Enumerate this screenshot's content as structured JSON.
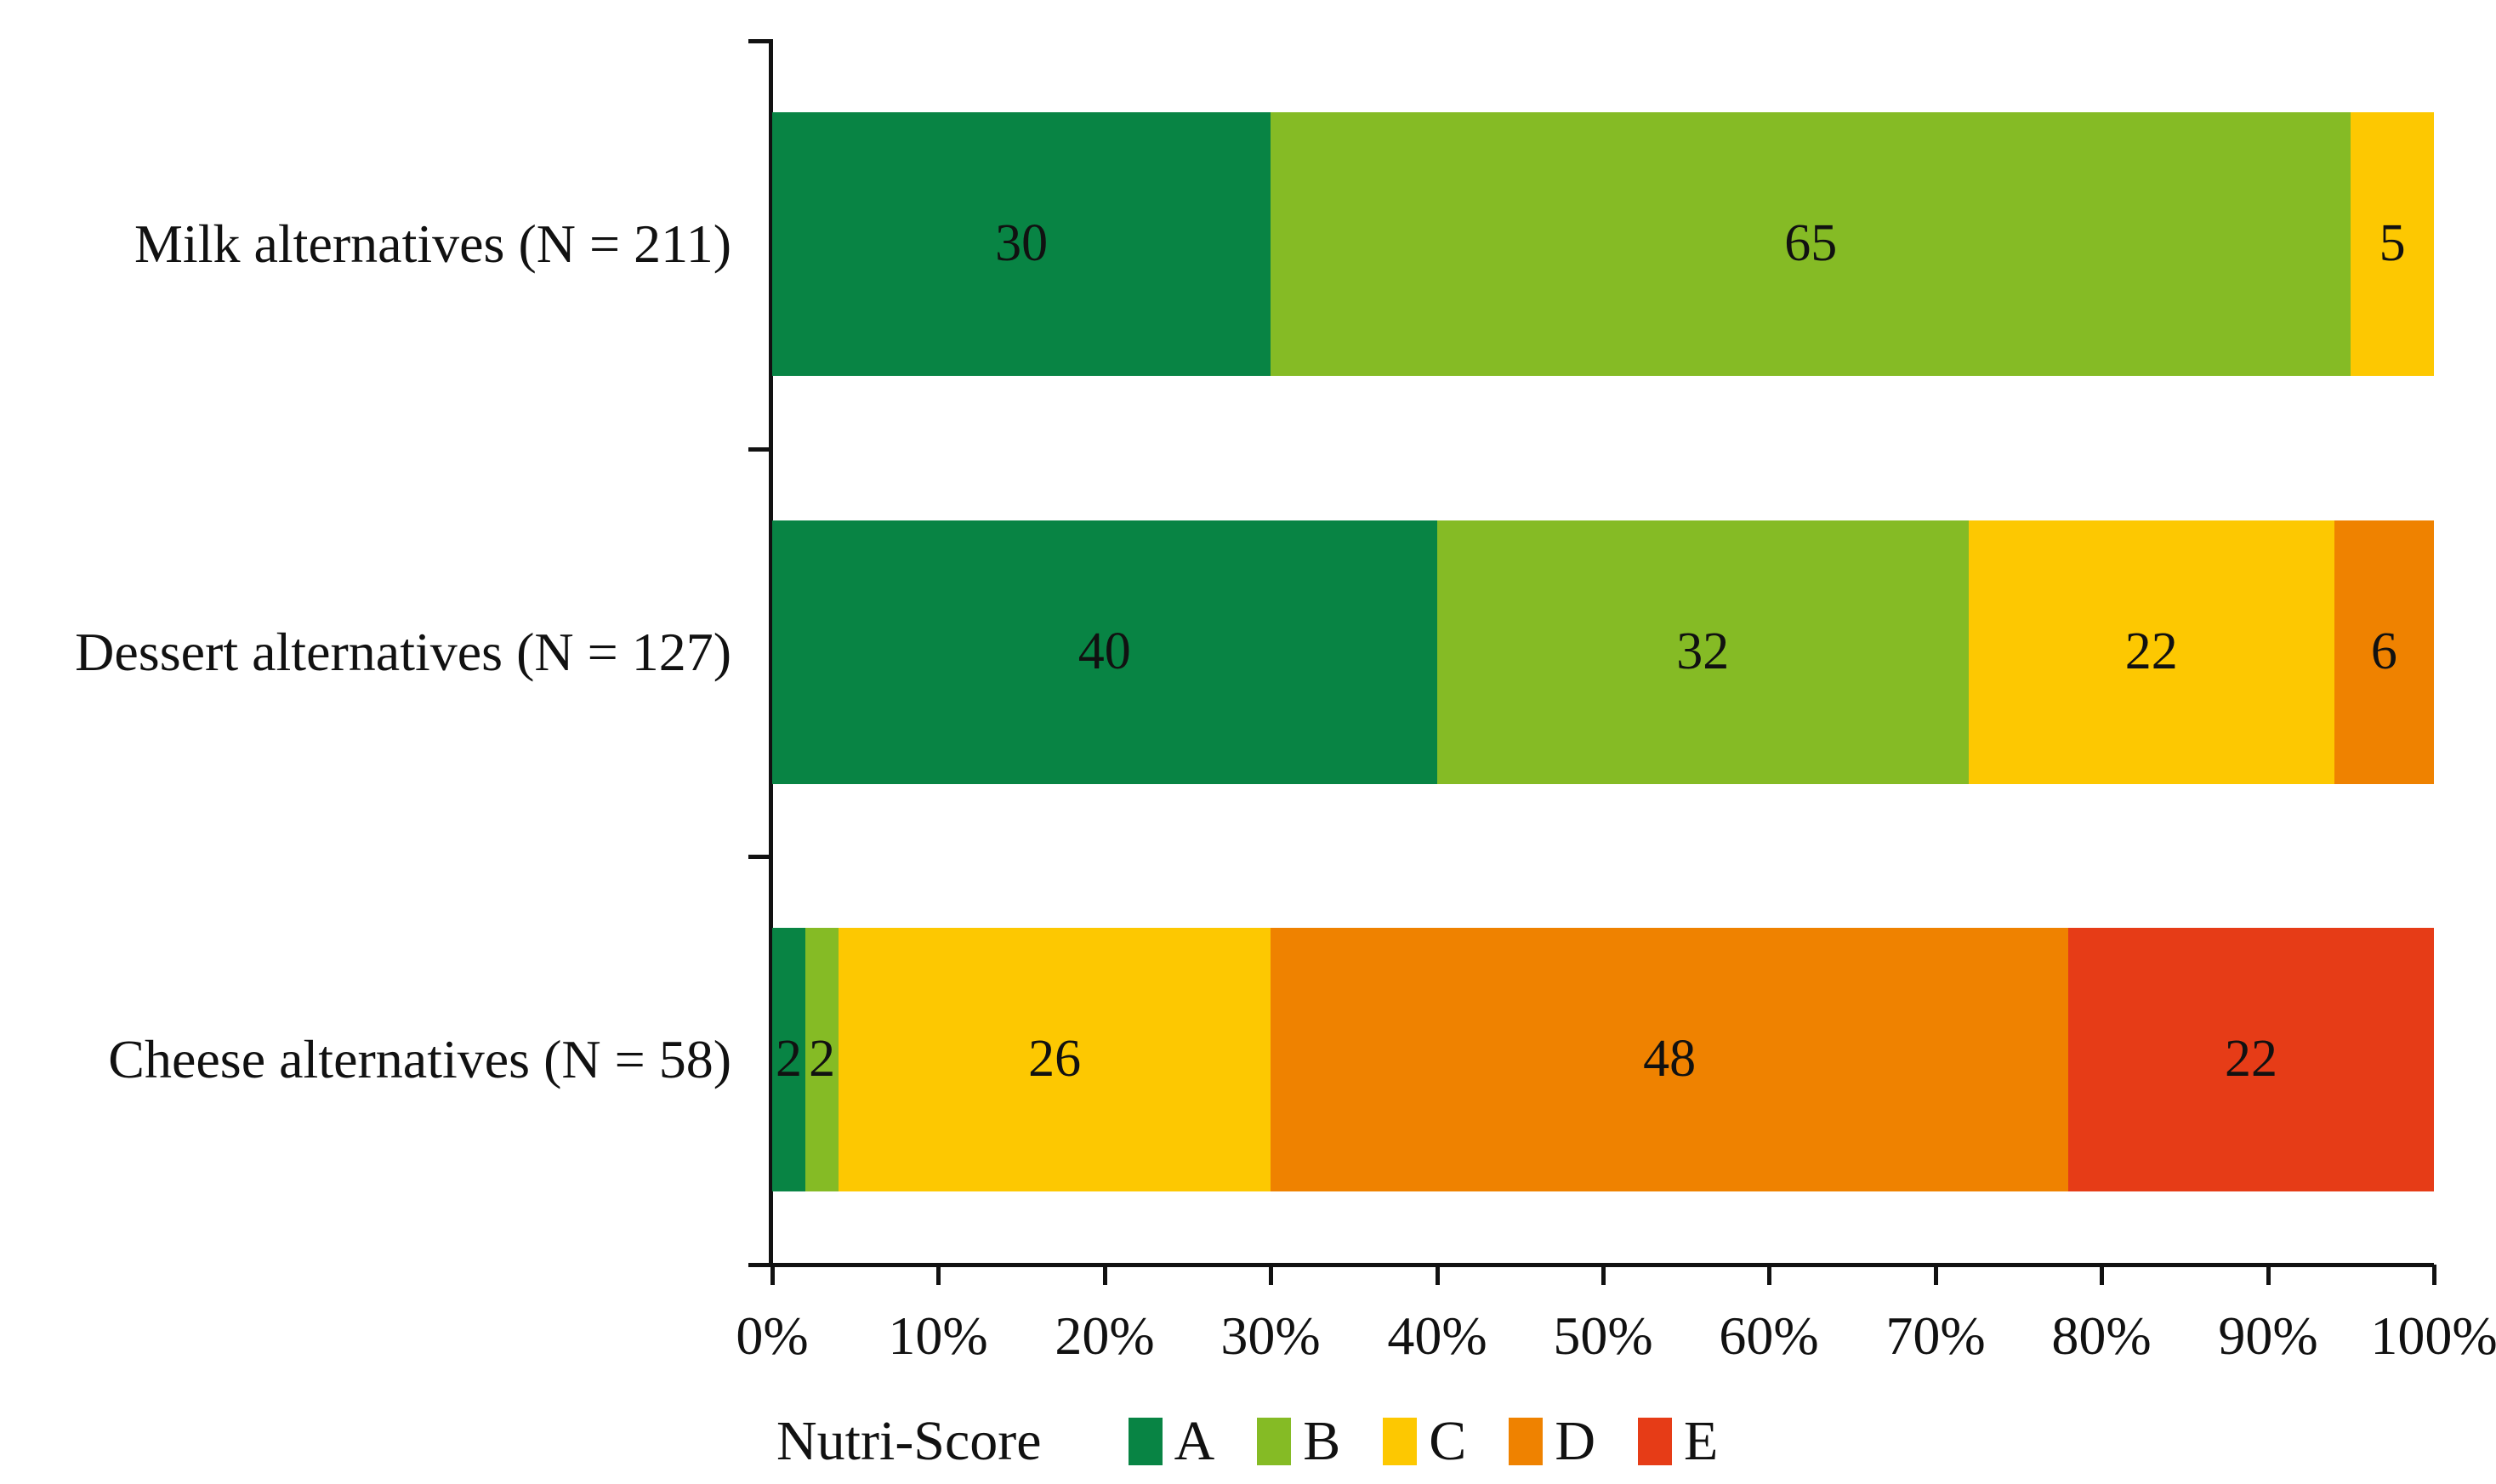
{
  "chart_data": {
    "type": "bar",
    "variant": "horizontal-stacked-100pct",
    "categories": [
      "Milk alternatives (N = 211)",
      "Dessert alternatives (N = 127)",
      "Cheese alternatives (N = 58)"
    ],
    "series": [
      {
        "name": "A",
        "color": "#088444",
        "values": [
          30,
          40,
          2
        ]
      },
      {
        "name": "B",
        "color": "#85bb25",
        "values": [
          65,
          32,
          2
        ]
      },
      {
        "name": "C",
        "color": "#fdc801",
        "values": [
          5,
          22,
          26
        ]
      },
      {
        "name": "D",
        "color": "#ef8200",
        "values": [
          0,
          6,
          48
        ]
      },
      {
        "name": "E",
        "color": "#e63c17",
        "values": [
          0,
          0,
          22
        ]
      }
    ],
    "segment_labels_shown": true,
    "x_axis": {
      "min": 0,
      "max": 100,
      "tick_labels": [
        "0%",
        "10%",
        "20%",
        "30%",
        "40%",
        "50%",
        "60%",
        "70%",
        "80%",
        "90%",
        "100%"
      ]
    },
    "y_axis": {
      "gridlines": false
    },
    "legend": {
      "title": "Nutri-Score",
      "entries": [
        "A",
        "B",
        "C",
        "D",
        "E"
      ],
      "position": "bottom"
    },
    "text_color": "#111111",
    "axis_color": "#111111",
    "background_color": "#ffffff"
  }
}
